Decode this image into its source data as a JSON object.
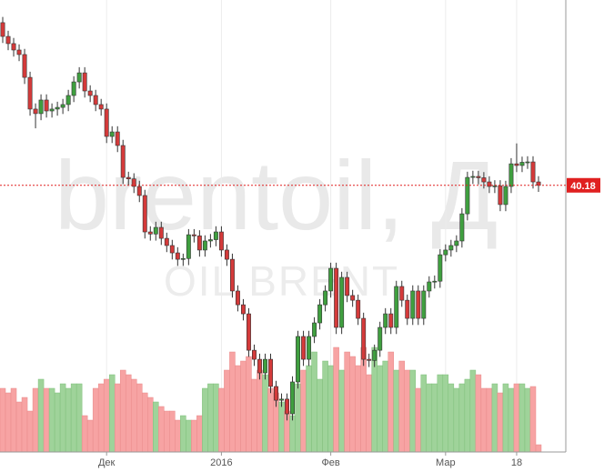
{
  "chart_data": {
    "type": "candlestick",
    "title": "brentoil, Д",
    "subtitle": "OIL BRENT",
    "categories": [
      null,
      null,
      null,
      null,
      null,
      null,
      null,
      null,
      null,
      null,
      null,
      null,
      null,
      null,
      null,
      null,
      null,
      null,
      null,
      "Дек",
      null,
      null,
      null,
      null,
      null,
      null,
      null,
      null,
      null,
      null,
      null,
      null,
      null,
      null,
      null,
      null,
      null,
      null,
      null,
      null,
      "2016",
      null,
      null,
      null,
      null,
      null,
      null,
      null,
      null,
      null,
      null,
      null,
      null,
      null,
      null,
      null,
      null,
      null,
      null,
      null,
      "Фев",
      null,
      null,
      null,
      null,
      null,
      null,
      null,
      null,
      null,
      null,
      null,
      null,
      null,
      null,
      null,
      null,
      null,
      null,
      null,
      null,
      "Мар",
      null,
      null,
      null,
      null,
      null,
      null,
      null,
      null,
      null,
      null,
      null,
      null,
      "18",
      null,
      null,
      null,
      null
    ],
    "open": [
      48.8,
      48.07,
      47.69,
      47.35,
      47.11,
      45.9,
      44.22,
      43.98,
      44.7,
      44.12,
      44.22,
      44.31,
      44.46,
      44.94,
      45.66,
      46.14,
      45.18,
      44.94,
      44.46,
      44.22,
      42.77,
      43.01,
      42.29,
      40.6,
      40.52,
      40.12,
      39.64,
      37.71,
      37.6,
      37.95,
      37.37,
      36.99,
      36.6,
      36.26,
      36.3,
      37.56,
      37.5,
      36.75,
      37.23,
      37.3,
      37.71,
      36.75,
      36.26,
      34.58,
      33.85,
      33.37,
      31.44,
      30.96,
      30.24,
      30.96,
      29.52,
      28.79,
      28.85,
      28.07,
      29.76,
      32.17,
      30.96,
      32.17,
      32.89,
      33.85,
      34.58,
      35.78,
      32.65,
      35.3,
      34.34,
      34.09,
      33.13,
      30.96,
      30.9,
      31.44,
      32.65,
      33.37,
      32.65,
      34.82,
      34.09,
      33.13,
      34.58,
      33.13,
      34.58,
      35.06,
      35.1,
      36.5,
      36.75,
      36.99,
      37.23,
      38.67,
      40.6,
      40.65,
      40.58,
      40.36,
      40.12,
      40.15,
      39.16,
      40.12,
      41.32,
      41.23,
      41.4,
      41.42,
      40.36
    ],
    "high": [
      49.1,
      48.37,
      47.99,
      47.65,
      47.41,
      46.2,
      44.52,
      45.0,
      45.0,
      44.52,
      44.61,
      44.76,
      45.24,
      45.96,
      46.44,
      46.44,
      45.48,
      45.24,
      44.76,
      44.52,
      43.31,
      43.31,
      42.59,
      40.9,
      40.82,
      40.42,
      39.94,
      38.01,
      38.25,
      38.25,
      37.67,
      37.29,
      36.9,
      36.56,
      37.86,
      37.86,
      37.8,
      37.53,
      37.6,
      38.01,
      38.01,
      37.05,
      36.56,
      34.88,
      34.15,
      33.67,
      31.74,
      31.26,
      31.26,
      31.26,
      29.82,
      29.15,
      29.15,
      30.06,
      32.47,
      32.47,
      32.47,
      33.19,
      34.15,
      34.88,
      36.08,
      36.08,
      35.6,
      35.6,
      34.64,
      34.39,
      33.43,
      31.26,
      31.74,
      32.95,
      33.67,
      33.67,
      35.12,
      35.12,
      34.39,
      34.88,
      34.88,
      34.88,
      35.36,
      35.4,
      36.8,
      37.05,
      37.29,
      37.53,
      38.97,
      40.9,
      40.95,
      40.95,
      40.88,
      40.66,
      40.45,
      40.45,
      40.42,
      41.62,
      42.4,
      41.7,
      41.72,
      41.72,
      40.66
    ],
    "low": [
      47.72,
      47.34,
      47.0,
      46.76,
      45.55,
      43.87,
      43.2,
      43.63,
      43.77,
      43.77,
      43.87,
      43.96,
      44.11,
      44.59,
      45.31,
      44.83,
      44.59,
      44.11,
      43.87,
      42.42,
      42.42,
      41.94,
      40.25,
      40.17,
      39.77,
      39.29,
      37.36,
      37.25,
      37.25,
      37.02,
      36.64,
      36.25,
      35.91,
      35.91,
      35.95,
      37.15,
      36.4,
      36.4,
      36.88,
      36.95,
      36.4,
      35.91,
      34.23,
      33.5,
      33.02,
      31.09,
      30.61,
      29.89,
      29.89,
      29.17,
      28.44,
      28.44,
      27.72,
      27.72,
      29.41,
      30.61,
      30.61,
      31.82,
      32.54,
      33.5,
      34.23,
      32.3,
      32.3,
      33.99,
      33.74,
      32.78,
      30.61,
      30.55,
      30.55,
      31.09,
      32.3,
      32.3,
      32.3,
      33.74,
      32.78,
      32.78,
      32.78,
      32.78,
      34.23,
      34.71,
      34.75,
      36.15,
      36.4,
      36.64,
      36.88,
      38.32,
      40.25,
      40.23,
      40.01,
      39.77,
      39.77,
      38.81,
      38.81,
      39.77,
      40.88,
      40.88,
      41.05,
      40.01,
      39.83
    ],
    "close": [
      48.07,
      47.69,
      47.35,
      47.11,
      45.9,
      44.22,
      43.98,
      44.7,
      44.12,
      44.22,
      44.31,
      44.46,
      44.94,
      45.66,
      46.14,
      45.18,
      44.94,
      44.46,
      44.22,
      42.77,
      43.01,
      42.29,
      40.6,
      40.52,
      40.12,
      39.64,
      37.71,
      37.6,
      37.95,
      37.37,
      36.99,
      36.6,
      36.26,
      36.3,
      37.56,
      37.5,
      36.75,
      37.23,
      37.3,
      37.71,
      36.75,
      36.26,
      34.58,
      33.85,
      33.37,
      31.44,
      30.96,
      30.24,
      30.96,
      29.52,
      28.79,
      28.85,
      28.07,
      29.76,
      32.17,
      30.96,
      32.17,
      32.89,
      33.85,
      34.58,
      35.78,
      32.65,
      35.3,
      34.34,
      34.09,
      33.13,
      30.96,
      30.9,
      31.44,
      32.65,
      33.37,
      32.65,
      34.82,
      34.09,
      33.13,
      34.58,
      33.13,
      34.58,
      35.06,
      35.1,
      36.5,
      36.75,
      36.99,
      37.23,
      38.67,
      40.6,
      40.65,
      40.58,
      40.36,
      40.12,
      40.15,
      39.16,
      40.12,
      41.32,
      41.23,
      41.4,
      41.42,
      40.36,
      40.18
    ],
    "volume": [
      70,
      65,
      70,
      55,
      60,
      45,
      70,
      80,
      70,
      70,
      65,
      75,
      70,
      75,
      75,
      40,
      35,
      70,
      75,
      80,
      85,
      75,
      90,
      85,
      80,
      75,
      65,
      60,
      55,
      50,
      45,
      45,
      35,
      40,
      35,
      35,
      40,
      70,
      75,
      75,
      70,
      90,
      110,
      95,
      100,
      105,
      80,
      90,
      85,
      70,
      65,
      55,
      45,
      40,
      75,
      90,
      95,
      110,
      80,
      100,
      95,
      115,
      90,
      110,
      105,
      95,
      115,
      85,
      115,
      95,
      100,
      110,
      90,
      100,
      90,
      90,
      70,
      85,
      75,
      75,
      85,
      85,
      75,
      70,
      75,
      80,
      90,
      85,
      70,
      70,
      75,
      65,
      75,
      70,
      75,
      75,
      70,
      72,
      8
    ],
    "up_color": "#3f9f3f",
    "down_color": "#d43a3a",
    "volume_up_color": "#9fd39a",
    "volume_down_color": "#f7a3a3",
    "ylim": [
      26,
      50
    ],
    "vlim": [
      0,
      120
    ],
    "last_price": 40.18,
    "last_price_color": "#e02020",
    "grid": true
  }
}
